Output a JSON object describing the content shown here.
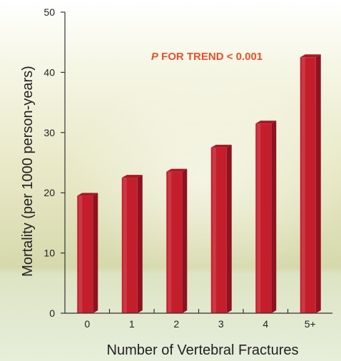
{
  "chart_data": {
    "type": "bar",
    "categories": [
      "0",
      "1",
      "2",
      "3",
      "4",
      "5+"
    ],
    "values": [
      19.5,
      22.5,
      23.5,
      27.5,
      31.5,
      42.5
    ],
    "xlabel": "Number of Vertebral Fractures",
    "ylabel": "Mortality (per 1000 person-years)",
    "ylim": [
      0,
      50
    ],
    "yticks": [
      "0",
      "10",
      "20",
      "30",
      "40",
      "50"
    ],
    "annotation": {
      "italic_part": "P",
      "rest": " FOR TREND < 0.001",
      "color": "#e8502a"
    },
    "bar_color": "#c41e2c",
    "grid": false
  }
}
